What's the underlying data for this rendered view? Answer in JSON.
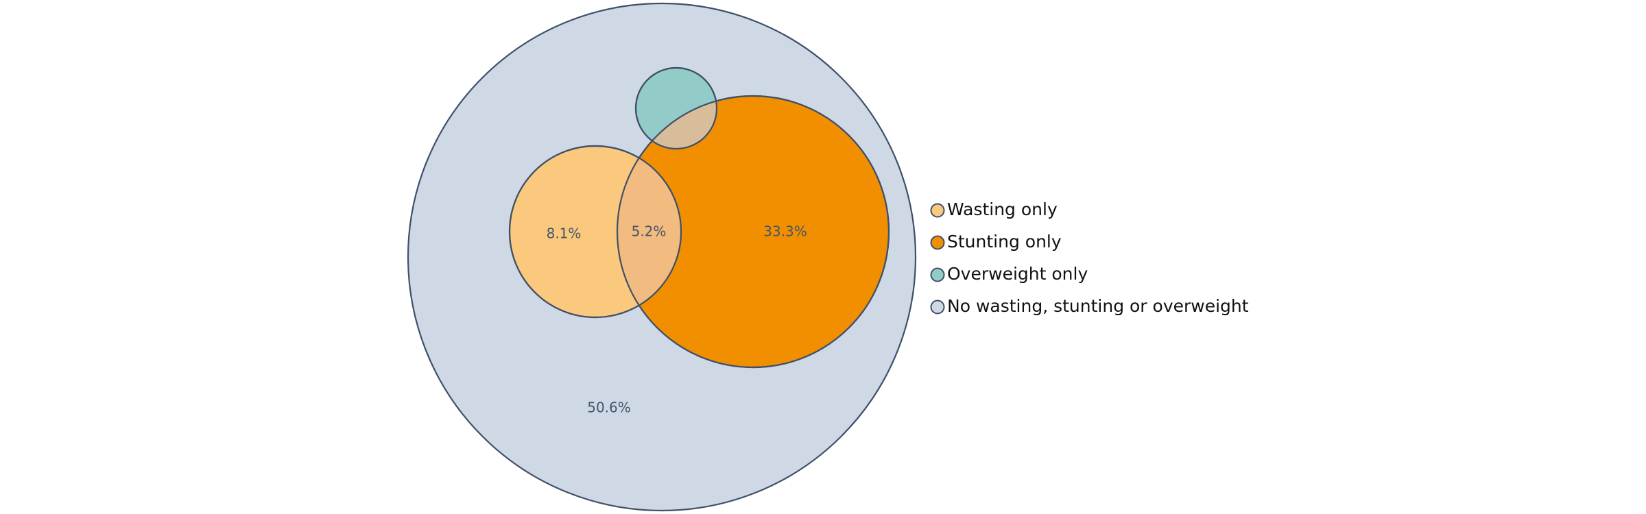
{
  "chart_data": {
    "type": "venn",
    "title": "",
    "legend_placement": "right",
    "sets": [
      {
        "key": "wasting",
        "name": "Wasting only",
        "color": "#fbc97d"
      },
      {
        "key": "stunting",
        "name": "Stunting only",
        "color": "#f28f00"
      },
      {
        "key": "overweight",
        "name": "Overweight only",
        "color": "#93cbc9"
      },
      {
        "key": "none",
        "name": "No wasting, stunting or overweight",
        "color": "#cfd9e6"
      }
    ],
    "regions": [
      {
        "sets": [
          "wasting"
        ],
        "label": "8.1%",
        "value": 8.1
      },
      {
        "sets": [
          "wasting",
          "stunting"
        ],
        "label": "5.2%",
        "value": 5.2
      },
      {
        "sets": [
          "stunting"
        ],
        "label": "33.3%",
        "value": 33.3
      },
      {
        "sets": [
          "none"
        ],
        "label": "50.6%",
        "value": 50.6
      }
    ],
    "overlap_colors": {
      "wasting_stunting": "#f2bb7f",
      "stunting_overweight": "#d8bd9a"
    },
    "border_color": "#3f5068"
  }
}
